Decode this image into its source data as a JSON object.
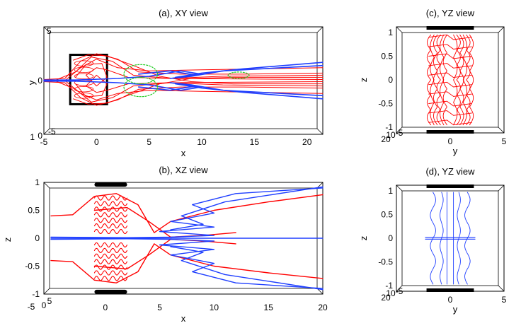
{
  "colors": {
    "red": "#ff0000",
    "blue": "#1f3fff",
    "green": "#22cc22",
    "black": "#000000"
  },
  "chart_data": [
    {
      "type": "line",
      "id": "a",
      "title": "(a), XY view",
      "xlabel": "x",
      "ylabel": "y",
      "xlim": [
        -5,
        21.5
      ],
      "ylim": [
        -5,
        5
      ],
      "xticks": [
        "-5",
        "0",
        "5",
        "10",
        "15",
        "20"
      ],
      "yticks": [
        "5",
        "0"
      ],
      "corner_labels": [
        "-5",
        "1",
        "0"
      ],
      "grid": false,
      "series": [
        {
          "color": "red",
          "kind": "field lines",
          "count": 10
        },
        {
          "color": "blue",
          "kind": "field lines",
          "count": 4
        },
        {
          "color": "green",
          "kind": "dotted loops",
          "count": 3
        }
      ],
      "box": {
        "x": [
          -2.5,
          1
        ],
        "y": [
          -2.2,
          2.4
        ]
      }
    },
    {
      "type": "line",
      "id": "b",
      "title": "(b), XZ view",
      "xlabel": "x",
      "ylabel": "z",
      "xlim": [
        -5,
        20
      ],
      "ylim": [
        -1,
        1
      ],
      "xticks": [
        "0",
        "5",
        "10",
        "15",
        "20"
      ],
      "yticks": [
        "1",
        "0.5",
        "0",
        "-0.5",
        "-1"
      ],
      "corner_labels": [
        "-5",
        "0",
        "5"
      ],
      "grid": false,
      "series": [
        {
          "color": "red",
          "kind": "field lines",
          "count": 4
        },
        {
          "color": "blue",
          "kind": "field lines",
          "count": 5
        }
      ],
      "plates": {
        "x": [
          -1,
          2
        ],
        "z": [
          0.96,
          -0.96
        ]
      }
    },
    {
      "type": "line",
      "id": "c",
      "title": "(c), YZ view",
      "xlabel": "y",
      "ylabel": "z",
      "xlim": [
        -5,
        5
      ],
      "ylim": [
        -1,
        1
      ],
      "xticks": [
        "0",
        "5"
      ],
      "yticks": [
        "1",
        "0.5",
        "0",
        "-0.5",
        "-1"
      ],
      "corner_labels": [
        "-5",
        "20",
        "10"
      ],
      "grid": false,
      "series": [
        {
          "color": "red",
          "kind": "field lines",
          "count": 12
        }
      ]
    },
    {
      "type": "line",
      "id": "d",
      "title": "(d), YZ view",
      "xlabel": "y",
      "ylabel": "z",
      "xlim": [
        -5,
        5
      ],
      "ylim": [
        -1,
        1
      ],
      "xticks": [
        "0",
        "5"
      ],
      "yticks": [
        "1",
        "0.5",
        "0",
        "-0.5",
        "-1"
      ],
      "corner_labels": [
        "-5",
        "20",
        "10"
      ],
      "grid": false,
      "series": [
        {
          "color": "blue",
          "kind": "field lines",
          "count": 8
        }
      ]
    }
  ]
}
